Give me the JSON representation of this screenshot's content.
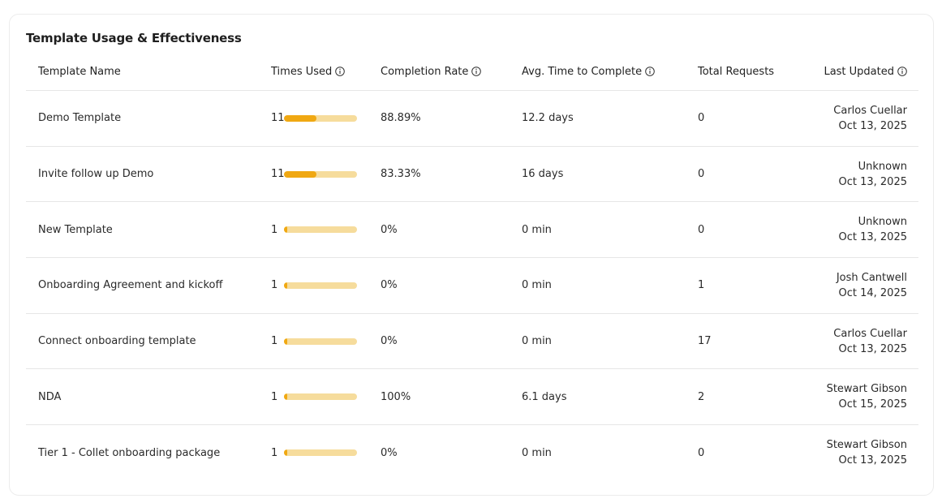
{
  "card": {
    "title": "Template Usage & Effectiveness"
  },
  "table": {
    "headers": {
      "name": "Template Name",
      "times_used": "Times Used",
      "completion_rate": "Completion Rate",
      "avg_time": "Avg. Time to Complete",
      "total_requests": "Total Requests",
      "last_updated": "Last Updated"
    },
    "accent_color": "#f0a812",
    "bar_track_color": "#f6dc9c",
    "max_times_used": 25,
    "rows": [
      {
        "name": "Demo Template",
        "times_used": "11",
        "completion_rate": "88.89%",
        "avg_time": "12.2 days",
        "total_requests": "0",
        "updated_by": "Carlos Cuellar",
        "updated_date": "Oct 13, 2025"
      },
      {
        "name": "Invite follow up Demo",
        "times_used": "11",
        "completion_rate": "83.33%",
        "avg_time": "16 days",
        "total_requests": "0",
        "updated_by": "Unknown",
        "updated_date": "Oct 13, 2025"
      },
      {
        "name": "New Template",
        "times_used": "1",
        "completion_rate": "0%",
        "avg_time": "0 min",
        "total_requests": "0",
        "updated_by": "Unknown",
        "updated_date": "Oct 13, 2025"
      },
      {
        "name": "Onboarding Agreement and kickoff",
        "times_used": "1",
        "completion_rate": "0%",
        "avg_time": "0 min",
        "total_requests": "1",
        "updated_by": "Josh Cantwell",
        "updated_date": "Oct 14, 2025"
      },
      {
        "name": "Connect onboarding template",
        "times_used": "1",
        "completion_rate": "0%",
        "avg_time": "0 min",
        "total_requests": "17",
        "updated_by": "Carlos Cuellar",
        "updated_date": "Oct 13, 2025"
      },
      {
        "name": "NDA",
        "times_used": "1",
        "completion_rate": "100%",
        "avg_time": "6.1 days",
        "total_requests": "2",
        "updated_by": "Stewart Gibson",
        "updated_date": "Oct 15, 2025"
      },
      {
        "name": "Tier 1 - Collet onboarding package",
        "times_used": "1",
        "completion_rate": "0%",
        "avg_time": "0 min",
        "total_requests": "0",
        "updated_by": "Stewart Gibson",
        "updated_date": "Oct 13, 2025"
      }
    ]
  }
}
